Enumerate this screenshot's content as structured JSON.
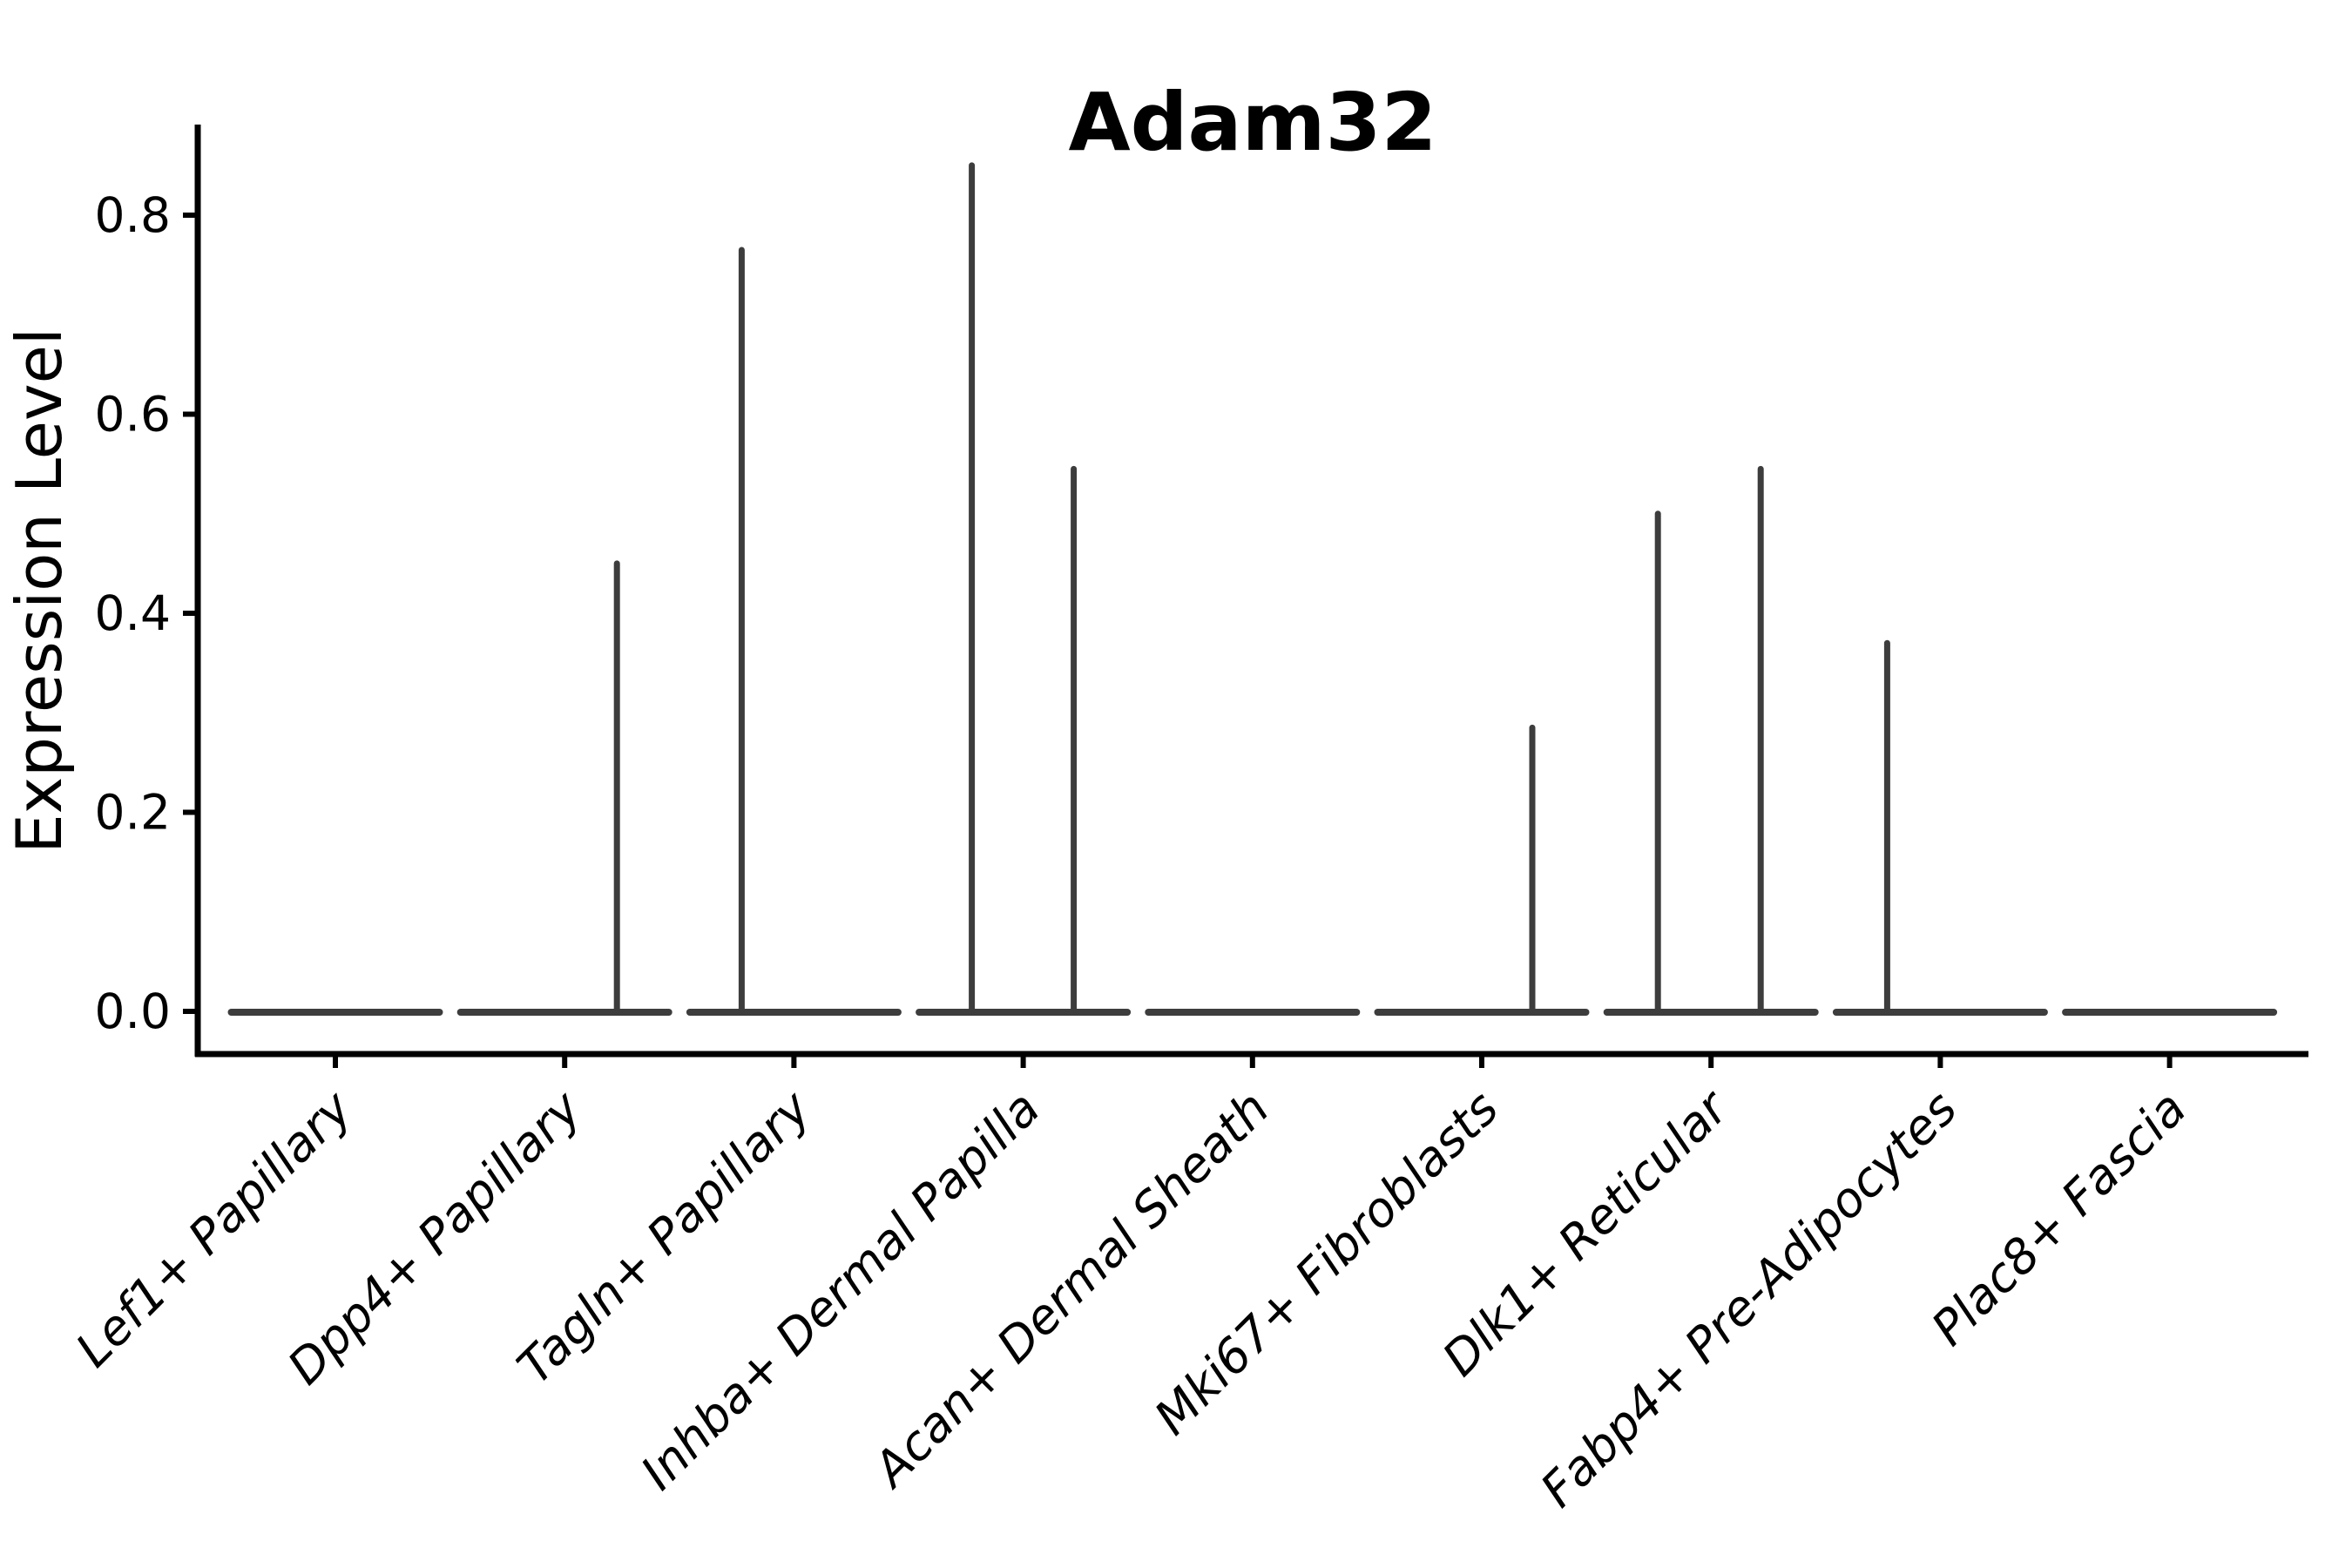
{
  "chart_data": {
    "type": "violin",
    "title": "Adam32",
    "ylabel": "Expression Level",
    "xlabel": "",
    "ylim": [
      0.0,
      0.89
    ],
    "yticks": [
      {
        "value": 0.0,
        "label": "0.0"
      },
      {
        "value": 0.2,
        "label": "0.2"
      },
      {
        "value": 0.4,
        "label": "0.4"
      },
      {
        "value": 0.6,
        "label": "0.6"
      },
      {
        "value": 0.8,
        "label": "0.8"
      }
    ],
    "categories": [
      "Lef1+ Papillary",
      "Dpp4+ Papillary",
      "Tagln+ Papillary",
      "Inhba+ Dermal Papilla",
      "Acan+ Dermal Sheath",
      "Mki67+ Fibroblasts",
      "Dlk1+ Reticular",
      "Fabp4+ Pre-Adipocytes",
      "Plac8+ Fascia"
    ],
    "violins": [
      {
        "category": "Lef1+ Papillary",
        "base_value": 0.0,
        "spikes": []
      },
      {
        "category": "Dpp4+ Papillary",
        "base_value": 0.0,
        "spikes": [
          {
            "dx": 60,
            "value": 0.45
          }
        ]
      },
      {
        "category": "Tagln+ Papillary",
        "base_value": 0.0,
        "spikes": [
          {
            "dx": -60,
            "value": 0.765
          }
        ]
      },
      {
        "category": "Inhba+ Dermal Papilla",
        "base_value": 0.0,
        "spikes": [
          {
            "dx": -59,
            "value": 0.85
          },
          {
            "dx": 58,
            "value": 0.545
          }
        ]
      },
      {
        "category": "Acan+ Dermal Sheath",
        "base_value": 0.0,
        "spikes": []
      },
      {
        "category": "Mki67+ Fibroblasts",
        "base_value": 0.0,
        "spikes": [
          {
            "dx": 58,
            "value": 0.285
          }
        ]
      },
      {
        "category": "Dlk1+ Reticular",
        "base_value": 0.0,
        "spikes": [
          {
            "dx": -61,
            "value": 0.5
          },
          {
            "dx": 57,
            "value": 0.545
          }
        ]
      },
      {
        "category": "Fabp4+ Pre-Adipocytes",
        "base_value": 0.0,
        "spikes": [
          {
            "dx": -61,
            "value": 0.37
          }
        ]
      },
      {
        "category": "Plac8+ Fascia",
        "base_value": 0.0,
        "spikes": []
      }
    ],
    "legend": "none",
    "grid": false,
    "colors": {
      "violin_stroke": "#3d3d3d",
      "axis": "#000000",
      "background": "#ffffff"
    }
  }
}
